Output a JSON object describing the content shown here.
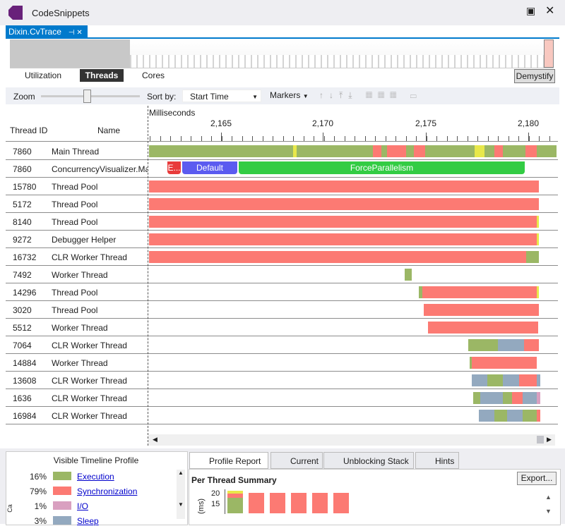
{
  "window": {
    "title": "CodeSnippets",
    "document_tab": "Dixin.CvTrace"
  },
  "view_tabs": [
    "Utilization",
    "Threads",
    "Cores"
  ],
  "demystify": "Demystify",
  "toolbar": {
    "zoom": "Zoom",
    "sort_by": "Sort by:",
    "sort_value": "Start Time",
    "markers": "Markers"
  },
  "timeline": {
    "axis_label": "Milliseconds",
    "ticks": [
      "2,165",
      "2,170",
      "2,175",
      "2,180"
    ],
    "columns": [
      "Thread ID",
      "Name"
    ],
    "rows": [
      [
        "7860",
        "Main Thread"
      ],
      [
        "7860",
        "ConcurrencyVisualizer.Ma"
      ],
      [
        "15780",
        "Thread Pool"
      ],
      [
        "5172",
        "Thread Pool"
      ],
      [
        "8140",
        "Thread Pool"
      ],
      [
        "9272",
        "Debugger Helper"
      ],
      [
        "16732",
        "CLR Worker Thread"
      ],
      [
        "7492",
        "Worker Thread"
      ],
      [
        "14296",
        "Thread Pool"
      ],
      [
        "3020",
        "Thread Pool"
      ],
      [
        "5512",
        "Worker Thread"
      ],
      [
        "7064",
        "CLR Worker Thread"
      ],
      [
        "14884",
        "Worker Thread"
      ],
      [
        "13608",
        "CLR Worker Thread"
      ],
      [
        "1636",
        "CLR Worker Thread"
      ],
      [
        "16984",
        "CLR Worker Thread"
      ]
    ],
    "markers": [
      "E...",
      "Default",
      "ForceParallelism"
    ]
  },
  "profile": {
    "title": "Visible Timeline Profile",
    "items": [
      [
        "16%",
        "Execution"
      ],
      [
        "79%",
        "Synchronization"
      ],
      [
        "1%",
        "I/O"
      ],
      [
        "3%",
        "Sleep"
      ]
    ]
  },
  "report": {
    "tabs": [
      "Profile Report",
      "Current",
      "Unblocking Stack",
      "Hints"
    ],
    "heading": "Per Thread Summary",
    "export": "Export...",
    "yticks": [
      "20",
      "15"
    ],
    "yunit": "(ms)"
  }
}
